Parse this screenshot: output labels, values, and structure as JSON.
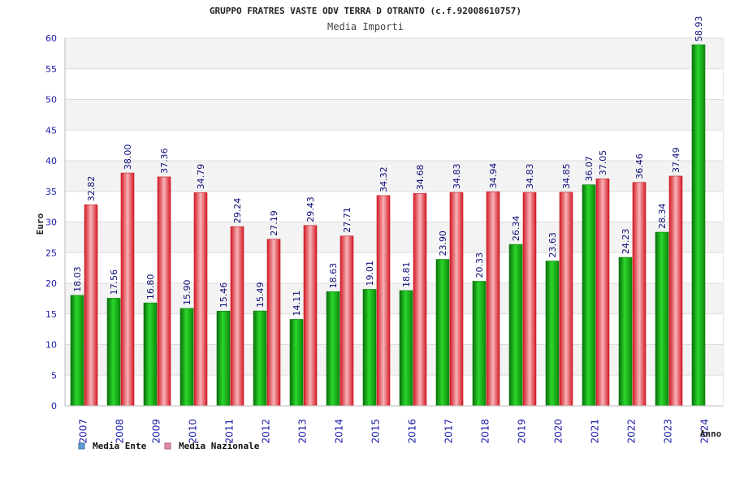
{
  "chart_data": {
    "type": "bar",
    "title": "GRUPPO FRATRES VASTE ODV TERRA D OTRANTO (c.f.92008610757)",
    "subtitle": "Media Importi",
    "xlabel": "Anno",
    "ylabel": "Euro",
    "ylim": [
      0,
      60
    ],
    "yticks": [
      0,
      5,
      10,
      15,
      20,
      25,
      30,
      35,
      40,
      45,
      50,
      55,
      60
    ],
    "grid": true,
    "legend_position": "bottom-left",
    "categories": [
      "2007",
      "2008",
      "2009",
      "2010",
      "2011",
      "2012",
      "2013",
      "2014",
      "2015",
      "2016",
      "2017",
      "2018",
      "2019",
      "2020",
      "2021",
      "2022",
      "2023",
      "2024"
    ],
    "series": [
      {
        "name": "Media Ente",
        "legend_color": "#5b9bd5",
        "bar_color": "#16b316",
        "values": [
          18.03,
          17.56,
          16.8,
          15.9,
          15.46,
          15.49,
          14.11,
          18.63,
          19.01,
          18.81,
          23.9,
          20.33,
          26.34,
          23.63,
          36.07,
          24.23,
          28.34,
          58.93
        ],
        "labels": [
          "18.03",
          "17.56",
          "16.80",
          "15.90",
          "15.46",
          "15.49",
          "14.11",
          "18.63",
          "19.01",
          "18.81",
          "23.90",
          "20.33",
          "26.34",
          "23.63",
          "36.07",
          "24.23",
          "28.34",
          "58.93"
        ]
      },
      {
        "name": "Media Nazionale",
        "legend_color": "#e08aa8",
        "bar_color": "#e8343e",
        "values": [
          32.82,
          38.0,
          37.36,
          34.79,
          29.24,
          27.19,
          29.43,
          27.71,
          34.32,
          34.68,
          34.83,
          34.94,
          34.83,
          34.85,
          37.05,
          36.46,
          37.49,
          null
        ],
        "labels": [
          "32.82",
          "38.00",
          "37.36",
          "34.79",
          "29.24",
          "27.19",
          "29.43",
          "27.71",
          "34.32",
          "34.68",
          "34.83",
          "34.94",
          "34.83",
          "34.85",
          "37.05",
          "36.46",
          "37.49",
          null
        ]
      }
    ]
  }
}
